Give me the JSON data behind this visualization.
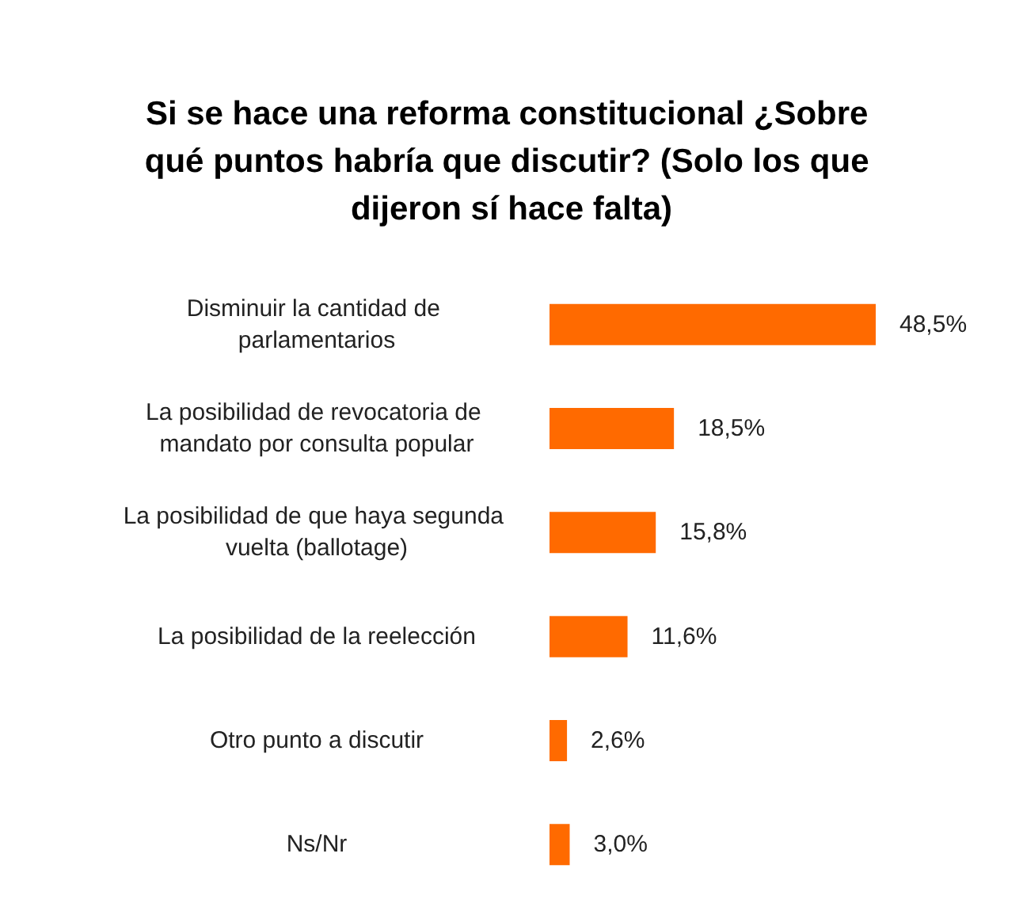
{
  "chart_data": {
    "type": "bar",
    "orientation": "horizontal",
    "title": "Si se hace una reforma constitucional ¿Sobre qué puntos habría que discutir? (Solo los que dijeron sí hace falta)",
    "categories": [
      "Disminuir la cantidad de parlamentarios",
      "La posibilidad de revocatoria de mandato por consulta popular",
      "La posibilidad de que haya segunda vuelta (ballotage)",
      "La posibilidad de la reelección",
      "Otro punto a discutir",
      "Ns/Nr"
    ],
    "values": [
      48.5,
      18.5,
      15.8,
      11.6,
      2.6,
      3.0
    ],
    "value_labels": [
      "48,5%",
      "18,5%",
      "15,8%",
      "11,6%",
      "2,6%",
      "3,0%"
    ],
    "color": "#ff6a00",
    "tick_labels": "y"
  }
}
